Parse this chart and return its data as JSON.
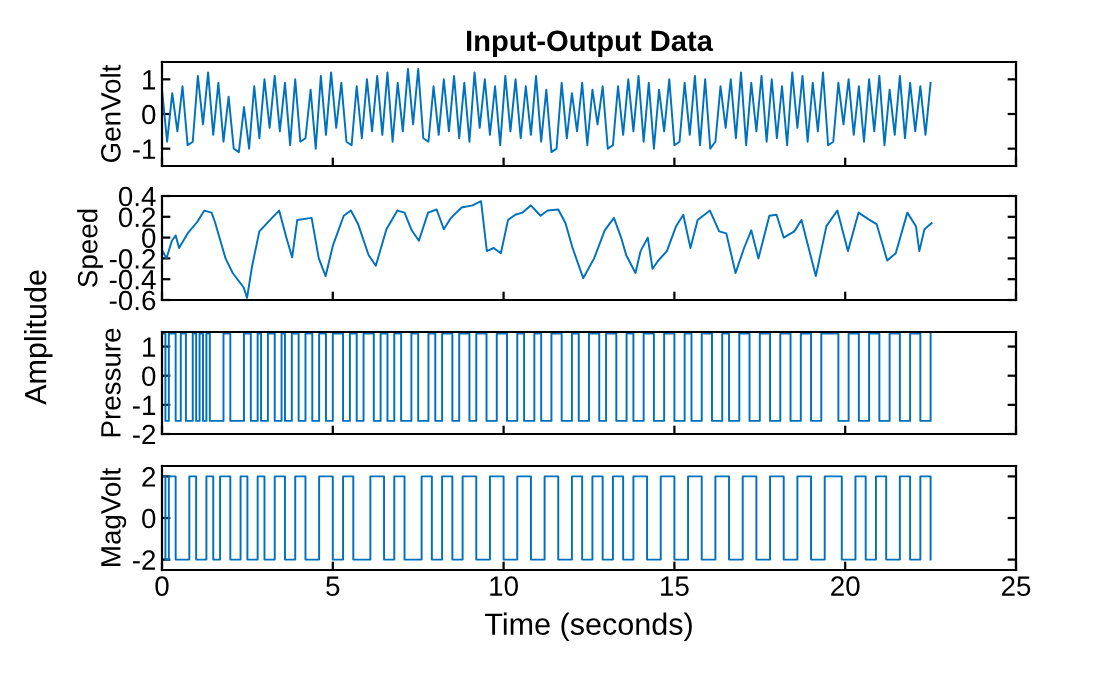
{
  "chart_data": [
    {
      "type": "line",
      "title": "Input-Output Data",
      "ylabel": "GenVolt",
      "xlim": [
        0,
        25
      ],
      "xticks": [
        0,
        5,
        10,
        15,
        20,
        25
      ],
      "ylim": [
        -1.5,
        1.5
      ],
      "yticks": [
        -1,
        0,
        1
      ],
      "tick_labels": "y",
      "grid": false,
      "series": [
        {
          "color": "#0072bd",
          "x": [
            0,
            0.15,
            0.3,
            0.45,
            0.6,
            0.75,
            0.9,
            1.05,
            1.2,
            1.35,
            1.5,
            1.65,
            1.8,
            1.95,
            2.1,
            2.25,
            2.4,
            2.55,
            2.7,
            2.85,
            3.0,
            3.15,
            3.3,
            3.45,
            3.6,
            3.75,
            3.9,
            4.05,
            4.2,
            4.35,
            4.5,
            4.65,
            4.8,
            4.95,
            5.1,
            5.25,
            5.4,
            5.55,
            5.7,
            5.85,
            6.0,
            6.15,
            6.3,
            6.45,
            6.6,
            6.75,
            6.9,
            7.05,
            7.2,
            7.35,
            7.5,
            7.65,
            7.8,
            7.95,
            8.1,
            8.25,
            8.4,
            8.55,
            8.7,
            8.85,
            9.0,
            9.15,
            9.3,
            9.45,
            9.6,
            9.75,
            9.9,
            10.05,
            10.2,
            10.35,
            10.5,
            10.65,
            10.8,
            10.95,
            11.1,
            11.25,
            11.4,
            11.55,
            11.7,
            11.85,
            12.0,
            12.15,
            12.3,
            12.45,
            12.6,
            12.75,
            12.9,
            13.05,
            13.2,
            13.35,
            13.5,
            13.65,
            13.8,
            13.95,
            14.1,
            14.25,
            14.4,
            14.55,
            14.7,
            14.85,
            15.0,
            15.15,
            15.3,
            15.45,
            15.6,
            15.75,
            15.9,
            16.05,
            16.2,
            16.35,
            16.5,
            16.65,
            16.8,
            16.95,
            17.1,
            17.25,
            17.4,
            17.55,
            17.7,
            17.85,
            18.0,
            18.15,
            18.3,
            18.45,
            18.6,
            18.75,
            18.9,
            19.05,
            19.2,
            19.35,
            19.5,
            19.65,
            19.8,
            19.95,
            20.1,
            20.25,
            20.4,
            20.55,
            20.7,
            20.85,
            21.0,
            21.15,
            21.3,
            21.45,
            21.6,
            21.75,
            21.9,
            22.05,
            22.2,
            22.35,
            22.5
          ],
          "values": [
            0.7,
            -0.8,
            0.6,
            -0.5,
            0.8,
            -0.9,
            -0.8,
            1.1,
            -0.3,
            1.2,
            -0.6,
            0.9,
            -0.8,
            0.5,
            -1.0,
            -1.1,
            0.2,
            -1.0,
            0.8,
            -0.7,
            1.0,
            -0.4,
            1.1,
            -0.5,
            0.9,
            -0.9,
            1.0,
            -0.8,
            -0.7,
            0.7,
            -1.0,
            1.1,
            -0.6,
            1.2,
            -0.4,
            0.9,
            -0.8,
            -0.9,
            0.8,
            -0.7,
            1.0,
            -0.5,
            1.1,
            -0.6,
            1.2,
            -0.8,
            0.9,
            -0.5,
            1.3,
            -0.3,
            1.3,
            -0.7,
            -0.8,
            0.8,
            -0.6,
            1.0,
            -0.5,
            1.1,
            -0.7,
            0.9,
            -0.8,
            1.2,
            -0.4,
            1.0,
            -0.6,
            0.8,
            -0.9,
            1.1,
            -0.5,
            1.0,
            -0.7,
            0.8,
            -0.6,
            1.1,
            -0.8,
            0.7,
            -1.1,
            -1.0,
            0.9,
            -0.7,
            0.6,
            -0.5,
            0.9,
            -0.9,
            0.7,
            -0.3,
            0.8,
            -1.0,
            -0.9,
            0.8,
            -0.6,
            1.0,
            -0.5,
            1.1,
            -0.8,
            0.9,
            -1.0,
            0.7,
            -0.5,
            1.0,
            -0.9,
            -0.8,
            0.9,
            -0.6,
            1.1,
            -0.9,
            1.0,
            -1.0,
            -0.8,
            0.8,
            -0.4,
            1.0,
            -0.7,
            1.2,
            -0.9,
            0.9,
            -0.5,
            1.1,
            -0.8,
            1.0,
            -0.7,
            0.8,
            -0.9,
            1.2,
            -0.4,
            1.1,
            -0.8,
            0.9,
            -0.5,
            1.2,
            -0.9,
            -0.8,
            0.9,
            -0.3,
            1.0,
            -0.6,
            0.8,
            -0.8,
            1.0,
            -0.5,
            1.1,
            -0.9,
            0.7,
            -0.6,
            1.1,
            -0.7,
            0.9,
            -0.5,
            0.8,
            -0.6,
            0.9
          ]
        }
      ]
    },
    {
      "type": "line",
      "ylabel": "Speed",
      "annotations": [
        "Amplitude"
      ],
      "xlim": [
        0,
        25
      ],
      "xticks": [
        0,
        5,
        10,
        15,
        20,
        25
      ],
      "ylim": [
        -0.6,
        0.4
      ],
      "yticks": [
        -0.6,
        -0.4,
        -0.2,
        0,
        0.2,
        0.4
      ],
      "tick_labels": "y",
      "grid": false,
      "series": [
        {
          "color": "#0072bd",
          "x": [
            0,
            0.13,
            0.29,
            0.4,
            0.5,
            0.75,
            1.03,
            1.24,
            1.45,
            1.55,
            1.86,
            2.07,
            2.39,
            2.49,
            2.64,
            2.85,
            3.22,
            3.43,
            3.64,
            3.81,
            3.96,
            4.38,
            4.59,
            4.79,
            5.0,
            5.32,
            5.53,
            5.74,
            6.05,
            6.26,
            6.57,
            6.89,
            7.1,
            7.31,
            7.52,
            7.79,
            8.04,
            8.25,
            8.46,
            8.77,
            9.09,
            9.34,
            9.51,
            9.71,
            9.92,
            10.13,
            10.34,
            10.55,
            10.8,
            11.08,
            11.29,
            11.6,
            11.81,
            12.02,
            12.33,
            12.65,
            12.96,
            13.23,
            13.44,
            13.59,
            13.86,
            14.01,
            14.22,
            14.36,
            14.53,
            14.78,
            15.05,
            15.26,
            15.47,
            15.68,
            16.04,
            16.31,
            16.52,
            16.79,
            17.04,
            17.25,
            17.46,
            17.78,
            17.99,
            18.2,
            18.51,
            18.72,
            19.14,
            19.45,
            19.77,
            20.08,
            20.39,
            20.71,
            20.92,
            21.23,
            21.48,
            21.82,
            22.07,
            22.17,
            22.32,
            22.53
          ],
          "values": [
            -0.12,
            -0.2,
            -0.03,
            0.02,
            -0.1,
            0.04,
            0.15,
            0.26,
            0.24,
            0.15,
            -0.2,
            -0.34,
            -0.48,
            -0.58,
            -0.27,
            0.06,
            0.19,
            0.26,
            0,
            -0.19,
            0.17,
            0.19,
            -0.2,
            -0.37,
            -0.08,
            0.21,
            0.26,
            0.13,
            -0.17,
            -0.27,
            0.08,
            0.26,
            0.24,
            0.07,
            -0.03,
            0.24,
            0.27,
            0.08,
            0.19,
            0.29,
            0.31,
            0.35,
            -0.13,
            -0.1,
            -0.15,
            0.17,
            0.22,
            0.24,
            0.31,
            0.21,
            0.26,
            0.27,
            0.14,
            -0.1,
            -0.39,
            -0.2,
            0.07,
            0.19,
            0,
            -0.17,
            -0.34,
            -0.13,
            0,
            -0.3,
            -0.22,
            -0.13,
            0.11,
            0.22,
            -0.1,
            0.17,
            0.26,
            0.06,
            0.04,
            -0.34,
            -0.1,
            0.07,
            -0.2,
            0.21,
            0.22,
            0,
            0.06,
            0.17,
            -0.37,
            0.11,
            0.26,
            -0.13,
            0.24,
            0.17,
            0.13,
            -0.22,
            -0.15,
            0.24,
            0.11,
            -0.13,
            0.08,
            0.14
          ]
        }
      ]
    },
    {
      "type": "step",
      "ylabel": "Pressure",
      "xlim": [
        0,
        25
      ],
      "xticks": [
        0,
        5,
        10,
        15,
        20,
        25
      ],
      "ylim": [
        -2,
        1.5
      ],
      "yticks": [
        -2,
        -1,
        0,
        1
      ],
      "tick_labels": "y",
      "grid": false,
      "series": [
        {
          "color": "#0072bd",
          "x": [
            0,
            0.1,
            0.2,
            0.4,
            0.55,
            0.7,
            0.9,
            1.0,
            1.1,
            1.2,
            1.3,
            1.4,
            1.8,
            2.0,
            2.4,
            2.6,
            2.8,
            2.9,
            3.1,
            3.3,
            3.5,
            3.6,
            3.8,
            4.0,
            4.2,
            4.4,
            4.6,
            4.8,
            5.0,
            5.3,
            5.5,
            5.7,
            5.9,
            6.2,
            6.4,
            6.6,
            6.8,
            7.0,
            7.3,
            7.5,
            7.8,
            8.0,
            8.2,
            8.5,
            8.7,
            9.0,
            9.2,
            9.5,
            9.8,
            10.1,
            10.4,
            10.6,
            10.9,
            11.1,
            11.4,
            11.7,
            12.0,
            12.2,
            12.5,
            12.8,
            13.0,
            13.3,
            13.6,
            13.8,
            14.1,
            14.4,
            14.7,
            15.0,
            15.3,
            15.5,
            15.8,
            16.1,
            16.4,
            16.6,
            16.9,
            17.2,
            17.5,
            17.8,
            18.1,
            18.4,
            18.7,
            19.0,
            19.3,
            19.8,
            20.1,
            20.4,
            20.7,
            21.0,
            21.3,
            21.6,
            21.9,
            22.2,
            22.5
          ],
          "values": [
            1.45,
            -1.55,
            1.45,
            -1.55,
            1.45,
            -1.55,
            1.45,
            -1.55,
            1.45,
            -1.55,
            1.45,
            -1.55,
            1.45,
            -1.55,
            1.45,
            -1.55,
            1.45,
            -1.55,
            1.45,
            -1.55,
            1.45,
            -1.55,
            1.45,
            -1.55,
            1.45,
            -1.55,
            1.45,
            -1.55,
            1.45,
            -1.55,
            1.45,
            -1.55,
            1.45,
            -1.55,
            1.45,
            -1.55,
            1.45,
            -1.55,
            1.45,
            -1.55,
            1.45,
            -1.55,
            1.45,
            -1.55,
            1.45,
            -1.55,
            1.45,
            -1.55,
            1.45,
            -1.55,
            1.45,
            -1.55,
            1.45,
            -1.55,
            1.45,
            -1.55,
            1.45,
            -1.55,
            1.45,
            -1.55,
            1.45,
            -1.55,
            1.45,
            -1.55,
            1.45,
            -1.55,
            1.45,
            -1.55,
            1.45,
            -1.55,
            1.45,
            -1.55,
            1.45,
            -1.55,
            1.45,
            -1.55,
            1.45,
            -1.55,
            1.45,
            -1.55,
            1.45,
            -1.55,
            1.45,
            -1.55,
            1.45,
            -1.55,
            1.45,
            -1.55,
            1.45,
            -1.55,
            1.45,
            -1.55,
            1.45
          ]
        }
      ]
    },
    {
      "type": "step",
      "ylabel": "MagVolt",
      "xlabel": "Time (seconds)",
      "xlim": [
        0,
        25
      ],
      "xticks": [
        0,
        5,
        10,
        15,
        20,
        25
      ],
      "ylim": [
        -2.5,
        2.5
      ],
      "yticks": [
        -2,
        0,
        2
      ],
      "grid": false,
      "series": [
        {
          "color": "#0072bd",
          "x": [
            0,
            0.1,
            0.2,
            0.4,
            0.8,
            1.0,
            1.3,
            1.5,
            1.7,
            2.0,
            2.3,
            2.5,
            2.8,
            3.0,
            3.3,
            3.6,
            3.9,
            4.2,
            4.6,
            5.0,
            5.3,
            5.6,
            6.1,
            6.5,
            6.8,
            7.1,
            7.6,
            7.9,
            8.2,
            8.5,
            8.8,
            9.2,
            9.6,
            10.0,
            10.4,
            10.8,
            11.2,
            11.6,
            12.0,
            12.3,
            12.6,
            12.9,
            13.2,
            13.5,
            13.8,
            14.2,
            14.6,
            15.0,
            15.4,
            15.8,
            16.2,
            16.6,
            17.0,
            17.4,
            17.8,
            18.2,
            18.6,
            19.0,
            19.4,
            19.9,
            20.3,
            20.6,
            20.9,
            21.2,
            21.6,
            21.9,
            22.2,
            22.5
          ],
          "values": [
            2,
            -2,
            2,
            -2,
            2,
            -2,
            2,
            -2,
            2,
            -2,
            2,
            -2,
            2,
            -2,
            2,
            -2,
            2,
            -2,
            2,
            -2,
            2,
            -2,
            2,
            -2,
            2,
            -2,
            2,
            -2,
            2,
            -2,
            2,
            -2,
            2,
            -2,
            2,
            -2,
            2,
            -2,
            2,
            -2,
            2,
            -2,
            2,
            -2,
            2,
            -2,
            2,
            -2,
            2,
            -2,
            2,
            -2,
            2,
            -2,
            2,
            -2,
            2,
            -2,
            2,
            -2,
            2,
            -2,
            2,
            -2,
            2,
            -2,
            2,
            -2
          ]
        }
      ]
    }
  ]
}
